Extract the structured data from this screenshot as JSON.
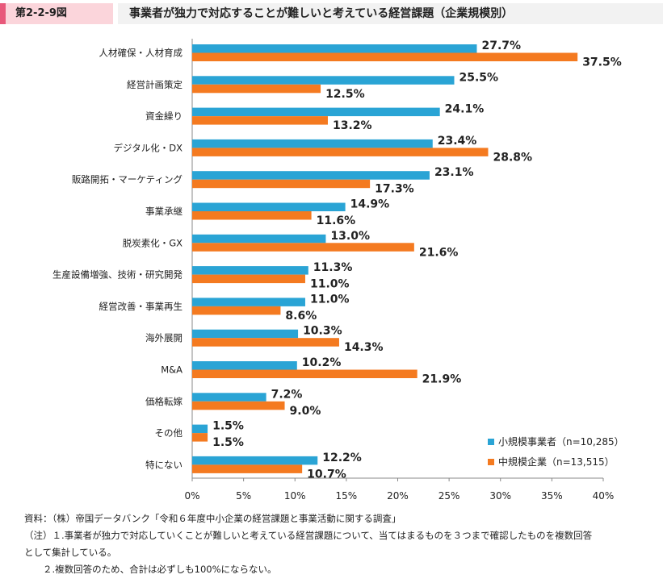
{
  "figure_label": "第2-2-9図",
  "title": "事業者が独力で対応することが難しいと考えている経営課題（企業規模別）",
  "chart_data": {
    "type": "bar",
    "orientation": "horizontal",
    "categories": [
      "人材確保・人材育成",
      "経営計画策定",
      "資金繰り",
      "デジタル化・DX",
      "販路開拓・マーケティング",
      "事業承継",
      "脱炭素化・GX",
      "生産設備増強、技術・研究開発",
      "経営改善・事業再生",
      "海外展開",
      "M&A",
      "価格転嫁",
      "その他",
      "特にない"
    ],
    "series": [
      {
        "name": "小規模事業者（n=10,285）",
        "color": "#2aa4d5",
        "values": [
          27.7,
          25.5,
          24.1,
          23.4,
          23.1,
          14.9,
          13.0,
          11.3,
          11.0,
          10.3,
          10.2,
          7.2,
          1.5,
          12.2
        ],
        "labels": [
          "27.7%",
          "25.5%",
          "24.1%",
          "23.4%",
          "23.1%",
          "14.9%",
          "13.0%",
          "11.3%",
          "11.0%",
          "10.3%",
          "10.2%",
          "7.2%",
          "1.5%",
          "12.2%"
        ]
      },
      {
        "name": "中規模企業（n=13,515）",
        "color": "#f47a20",
        "values": [
          37.5,
          12.5,
          13.2,
          28.8,
          17.3,
          11.6,
          21.6,
          11.0,
          8.6,
          14.3,
          21.9,
          9.0,
          1.5,
          10.7
        ],
        "labels": [
          "37.5%",
          "12.5%",
          "13.2%",
          "28.8%",
          "17.3%",
          "11.6%",
          "21.6%",
          "11.0%",
          "8.6%",
          "14.3%",
          "21.9%",
          "9.0%",
          "1.5%",
          "10.7%"
        ]
      }
    ],
    "xlim": [
      0,
      40
    ],
    "x_ticks": [
      0,
      5,
      10,
      15,
      20,
      25,
      30,
      35,
      40
    ],
    "x_tick_labels": [
      "0%",
      "5%",
      "10%",
      "15%",
      "20%",
      "25%",
      "30%",
      "35%",
      "40%"
    ],
    "legend_position": "bottom-right",
    "grid": false
  },
  "notes": [
    "資料：（株）帝国データバンク「令和６年度中小企業の経営課題と事業活動に関する調査」",
    "（注）１.事業者が独力で対応していくことが難しいと考えている経営課題について、当てはまるものを３つまで確認したものを複数回答",
    "として集計している。",
    "　　２.複数回答のため、合計は必ずしも100%にならない。"
  ]
}
